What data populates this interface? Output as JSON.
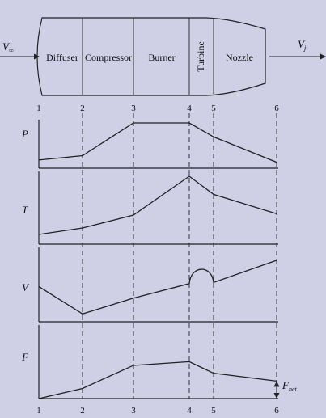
{
  "engine": {
    "inlet_velocity": {
      "main": "V",
      "sub": "∞"
    },
    "jet_velocity": {
      "main": "V",
      "sub": "j"
    },
    "sections": [
      "Diffuser",
      "Compressor",
      "Burner",
      "Turbine",
      "Nozzle"
    ]
  },
  "stations_top": [
    "1",
    "2",
    "3",
    "4",
    "5",
    "6"
  ],
  "stations_bottom": [
    "1",
    "2",
    "3",
    "4",
    "5",
    "6"
  ],
  "plots": [
    {
      "label": "P",
      "values": [
        0.15,
        0.25,
        1.0,
        1.0,
        0.68,
        0.1
      ]
    },
    {
      "label": "T",
      "values": [
        0.1,
        0.2,
        0.4,
        1.0,
        0.72,
        0.42
      ]
    },
    {
      "label": "V",
      "values": [
        0.55,
        0.08,
        0.35,
        0.6,
        0.62,
        1.0
      ],
      "bump_between": [
        3,
        4
      ]
    },
    {
      "label": "F",
      "values": [
        0.0,
        0.22,
        0.72,
        0.8,
        0.55,
        0.38
      ]
    }
  ],
  "net_thrust": {
    "main": "F",
    "sub": "net"
  }
}
